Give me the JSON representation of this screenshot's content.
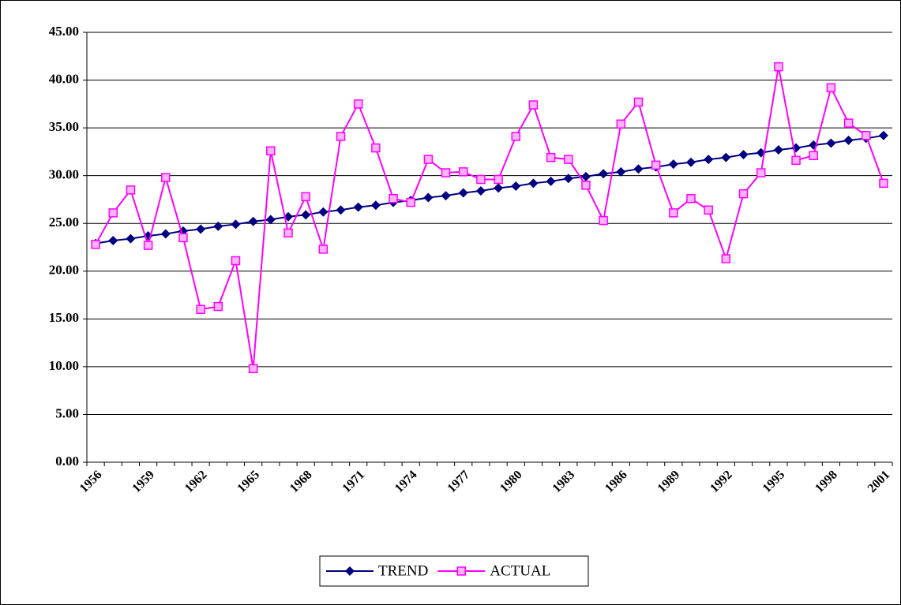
{
  "chart_data": {
    "type": "line",
    "categories": [
      "1956",
      null,
      null,
      "1959",
      null,
      null,
      "1962",
      null,
      null,
      "1965",
      null,
      null,
      "1968",
      null,
      null,
      "1971",
      null,
      null,
      "1974",
      null,
      null,
      "1977",
      null,
      null,
      "1980",
      null,
      null,
      "1983",
      null,
      null,
      "1986",
      null,
      null,
      "1989",
      null,
      null,
      "1992",
      null,
      null,
      "1995",
      null,
      null,
      "1998",
      null,
      null,
      "2001"
    ],
    "series": [
      {
        "name": "TREND",
        "color": "#000080",
        "marker": "diamond",
        "values": [
          22.9,
          23.2,
          23.4,
          23.7,
          23.9,
          24.2,
          24.4,
          24.7,
          24.9,
          25.2,
          25.4,
          25.7,
          25.9,
          26.2,
          26.4,
          26.7,
          26.9,
          27.2,
          27.4,
          27.7,
          27.9,
          28.2,
          28.4,
          28.7,
          28.9,
          29.2,
          29.4,
          29.7,
          29.9,
          30.2,
          30.4,
          30.7,
          30.9,
          31.2,
          31.4,
          31.7,
          31.9,
          32.2,
          32.4,
          32.7,
          32.9,
          33.2,
          33.4,
          33.7,
          33.9,
          34.2
        ]
      },
      {
        "name": "ACTUAL",
        "color": "#ff00ff",
        "marker": "square",
        "values": [
          22.8,
          26.1,
          28.5,
          22.7,
          29.8,
          23.5,
          16.0,
          16.3,
          21.1,
          9.8,
          32.6,
          24.0,
          27.8,
          22.3,
          34.1,
          37.5,
          32.9,
          27.6,
          27.2,
          31.7,
          30.3,
          30.4,
          29.6,
          29.6,
          34.1,
          37.4,
          31.9,
          31.7,
          29.0,
          25.3,
          35.4,
          37.7,
          31.1,
          26.1,
          27.6,
          26.4,
          21.3,
          28.1,
          30.3,
          41.4,
          31.6,
          32.1,
          39.2,
          35.5,
          34.2,
          29.2
        ]
      }
    ],
    "ylim": [
      0,
      45
    ],
    "yticks": [
      {
        "value": 0,
        "label": "0.00"
      },
      {
        "value": 5,
        "label": "5.00"
      },
      {
        "value": 10,
        "label": "10.00"
      },
      {
        "value": 15,
        "label": "15.00"
      },
      {
        "value": 20,
        "label": "20.00"
      },
      {
        "value": 25,
        "label": "25.00"
      },
      {
        "value": 30,
        "label": "30.00"
      },
      {
        "value": 35,
        "label": "35.00"
      },
      {
        "value": 40,
        "label": "40.00"
      },
      {
        "value": 45,
        "label": "45.00"
      }
    ],
    "grid": true,
    "legend": "bottom"
  }
}
